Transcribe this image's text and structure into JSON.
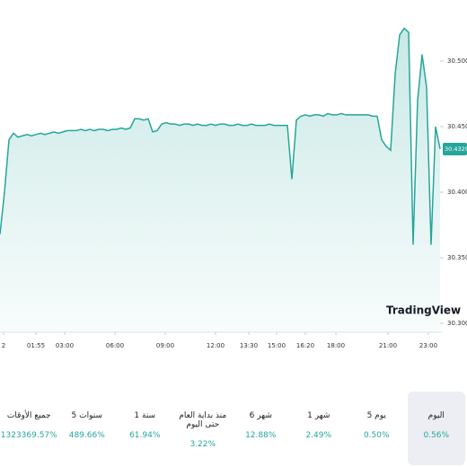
{
  "chart_data": {
    "type": "area",
    "values": [
      30.368,
      30.4,
      30.44,
      30.445,
      30.442,
      30.443,
      30.444,
      30.443,
      30.444,
      30.445,
      30.444,
      30.445,
      30.446,
      30.445,
      30.446,
      30.447,
      30.447,
      30.447,
      30.448,
      30.447,
      30.448,
      30.447,
      30.448,
      30.448,
      30.447,
      30.448,
      30.448,
      30.449,
      30.448,
      30.449,
      30.456,
      30.456,
      30.455,
      30.456,
      30.446,
      30.447,
      30.452,
      30.453,
      30.452,
      30.452,
      30.451,
      30.452,
      30.452,
      30.451,
      30.452,
      30.451,
      30.451,
      30.452,
      30.451,
      30.452,
      30.452,
      30.451,
      30.451,
      30.452,
      30.451,
      30.451,
      30.452,
      30.451,
      30.451,
      30.451,
      30.452,
      30.451,
      30.451,
      30.451,
      30.451,
      30.41,
      30.455,
      30.458,
      30.459,
      30.458,
      30.459,
      30.459,
      30.458,
      30.46,
      30.459,
      30.459,
      30.46,
      30.459,
      30.459,
      30.459,
      30.459,
      30.459,
      30.459,
      30.458,
      30.458,
      30.44,
      30.435,
      30.432,
      30.49,
      30.52,
      30.525,
      30.522,
      30.36,
      30.47,
      30.505,
      30.48,
      30.36,
      30.45,
      30.433
    ],
    "color": "#26a69a",
    "xlim": [
      0,
      98
    ],
    "ylim": [
      30.2932,
      30.5466
    ],
    "yticks": [
      {
        "value": 30.3,
        "label": "30.30000"
      },
      {
        "value": 30.35,
        "label": "30.35000"
      },
      {
        "value": 30.4,
        "label": "30.40000"
      },
      {
        "value": 30.45,
        "label": "30.45000"
      },
      {
        "value": 30.5,
        "label": "30.50000"
      }
    ],
    "xticks": [
      {
        "value": 0.8,
        "label": "2"
      },
      {
        "value": 8,
        "label": "01:55"
      },
      {
        "value": 14.4,
        "label": "03:00"
      },
      {
        "value": 25.6,
        "label": "06:00"
      },
      {
        "value": 36.8,
        "label": "09:00"
      },
      {
        "value": 48,
        "label": "12:00"
      },
      {
        "value": 55.4,
        "label": "13:30"
      },
      {
        "value": 61.6,
        "label": "15:00"
      },
      {
        "value": 68,
        "label": "16:20"
      },
      {
        "value": 74.8,
        "label": "18:00"
      },
      {
        "value": 86.4,
        "label": "21:00"
      },
      {
        "value": 95.4,
        "label": "23:00"
      }
    ],
    "last_price": 30.43292,
    "watermark": "TradingView"
  },
  "periods": [
    {
      "label": "اليوم",
      "change": "0.56%"
    },
    {
      "label": "5 يوم",
      "change": "0.50%"
    },
    {
      "label": "1 شهر",
      "change": "2.49%"
    },
    {
      "label": "6 شهر",
      "change": "12.88%"
    },
    {
      "label": "منذ بداية العام حتى اليوم",
      "change": "3.22%"
    },
    {
      "label": "1 سنة",
      "change": "61.94%"
    },
    {
      "label": "5 سنوات",
      "change": "489.66%"
    },
    {
      "label": "جميع الأوقات",
      "change": "1323369.57%"
    }
  ]
}
